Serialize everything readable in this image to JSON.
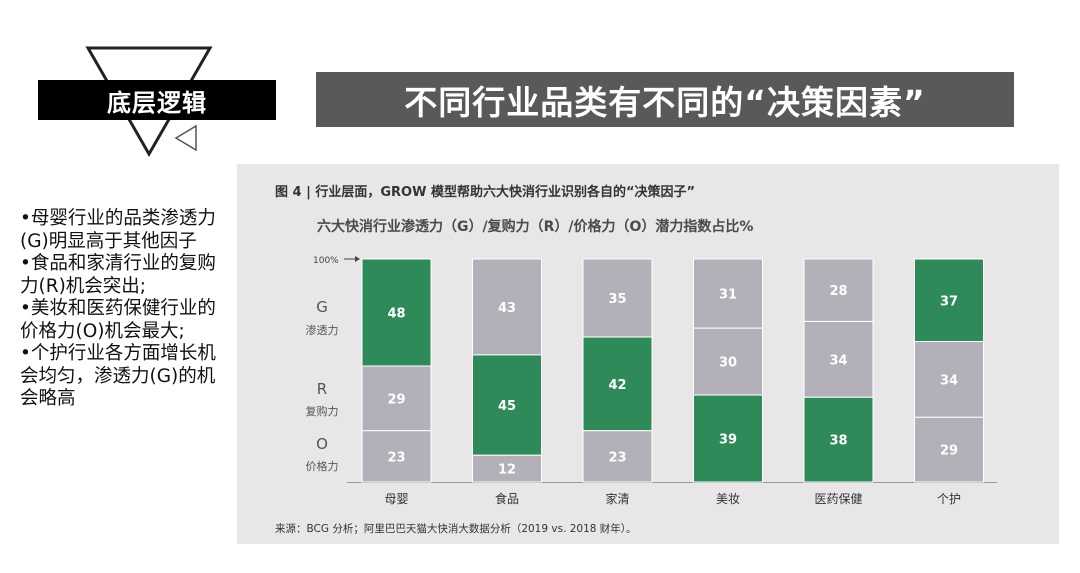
{
  "header": {
    "badge": "底层逻辑",
    "title": "不同行业品类有不同的“决策因素”"
  },
  "notes": [
    "•母婴行业的品类渗透力(G)明显高于其他因子",
    "•食品和家清行业的复购力(R)机会突出;",
    "•美妆和医药保健行业的价格力(O)机会最大;",
    "•个护行业各方面增长机会均匀，渗透力(G)的机会略高"
  ],
  "figure": {
    "title": "图 4 |  行业层面，GROW 模型帮助六大快消行业识别各自的“决策因子”",
    "source": "来源：BCG 分析；阿里巴巴天猫大快消大数据分析（2019 vs. 2018 财年）。"
  },
  "chart_data": {
    "type": "bar",
    "stacked": true,
    "title": "六大快消行业渗透力（G）/复购力（R）/价格力（O）潜力指数占比%",
    "top_marker": "100%",
    "categories": [
      "母婴",
      "食品",
      "家清",
      "美妆",
      "医药保健",
      "个护"
    ],
    "series": [
      {
        "name": "G",
        "label": "渗透力",
        "values": [
          48,
          43,
          35,
          31,
          28,
          37
        ]
      },
      {
        "name": "R",
        "label": "复购力",
        "values": [
          29,
          45,
          42,
          30,
          34,
          34
        ]
      },
      {
        "name": "O",
        "label": "价格力",
        "values": [
          23,
          12,
          23,
          39,
          38,
          29
        ]
      }
    ],
    "highlight": {
      "母婴": "G",
      "食品": "R",
      "家清": "R",
      "美妆": "O",
      "医药保健": "O",
      "个护": "G"
    },
    "colors": {
      "highlight": "#2f8a5a",
      "default": "#b4b0ba",
      "text": "#ffffff"
    },
    "ylim": [
      0,
      100
    ]
  }
}
